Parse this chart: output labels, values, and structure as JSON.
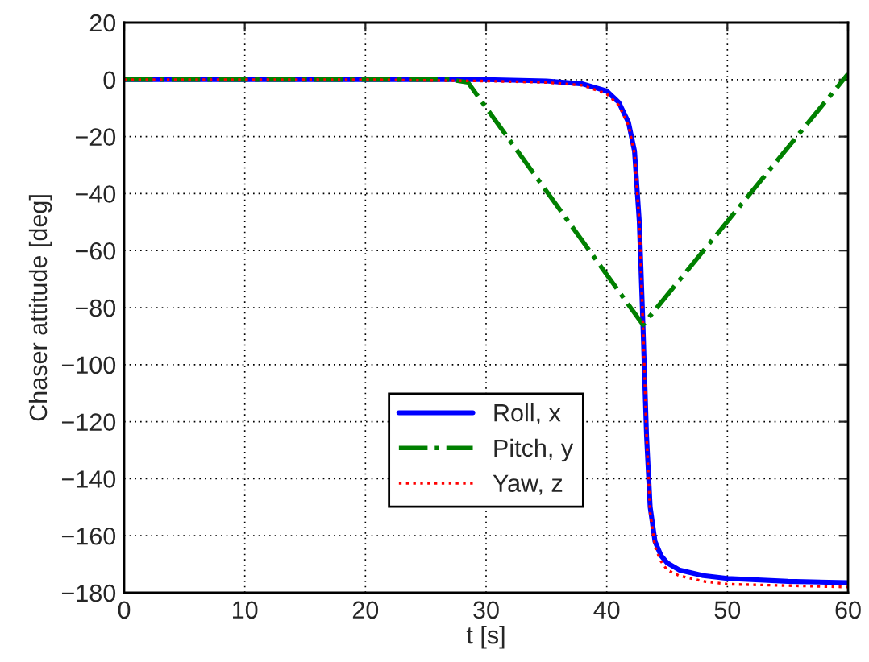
{
  "chart_data": {
    "type": "line",
    "xlabel": "t [s]",
    "ylabel": "Chaser attitude [deg]",
    "xlim": [
      0,
      60
    ],
    "ylim": [
      -180,
      20
    ],
    "xticks": [
      0,
      10,
      20,
      30,
      40,
      50,
      60
    ],
    "yticks": [
      -180,
      -160,
      -140,
      -120,
      -100,
      -80,
      -60,
      -40,
      -20,
      0,
      20
    ],
    "grid": true,
    "legend": "center",
    "series": [
      {
        "name": "Roll, x",
        "color": "#0000ff",
        "line_style": "solid",
        "x": [
          0,
          10,
          20,
          30,
          35,
          38,
          40,
          41,
          41.8,
          42.3,
          42.7,
          43.0,
          43.3,
          43.6,
          44.0,
          44.5,
          45,
          46,
          48,
          50,
          55,
          60
        ],
        "values": [
          0,
          0,
          0,
          0,
          -0.5,
          -1.5,
          -4,
          -8,
          -15,
          -25,
          -50,
          -86,
          -125,
          -150,
          -162,
          -167,
          -169.5,
          -172,
          -174,
          -175,
          -176,
          -176.5
        ]
      },
      {
        "name": "Pitch, y",
        "color": "#008000",
        "line_style": "dashdot",
        "x": [
          0,
          10,
          20,
          27,
          28.5,
          43,
          60
        ],
        "values": [
          0,
          0,
          0,
          0,
          -1,
          -86,
          2
        ]
      },
      {
        "name": "Yaw, z",
        "color": "#ff0000",
        "line_style": "dotted",
        "x": [
          0,
          10,
          20,
          30,
          35,
          38,
          40,
          41,
          41.8,
          42.3,
          42.7,
          43.0,
          43.3,
          43.6,
          44.0,
          44.5,
          45,
          46,
          48,
          50,
          55,
          60
        ],
        "values": [
          0,
          0,
          0,
          -0.5,
          -1,
          -2,
          -5,
          -9,
          -16,
          -26,
          -50,
          -86,
          -125,
          -152,
          -164,
          -169,
          -172,
          -174,
          -176,
          -177,
          -177.5,
          -178
        ]
      }
    ]
  }
}
